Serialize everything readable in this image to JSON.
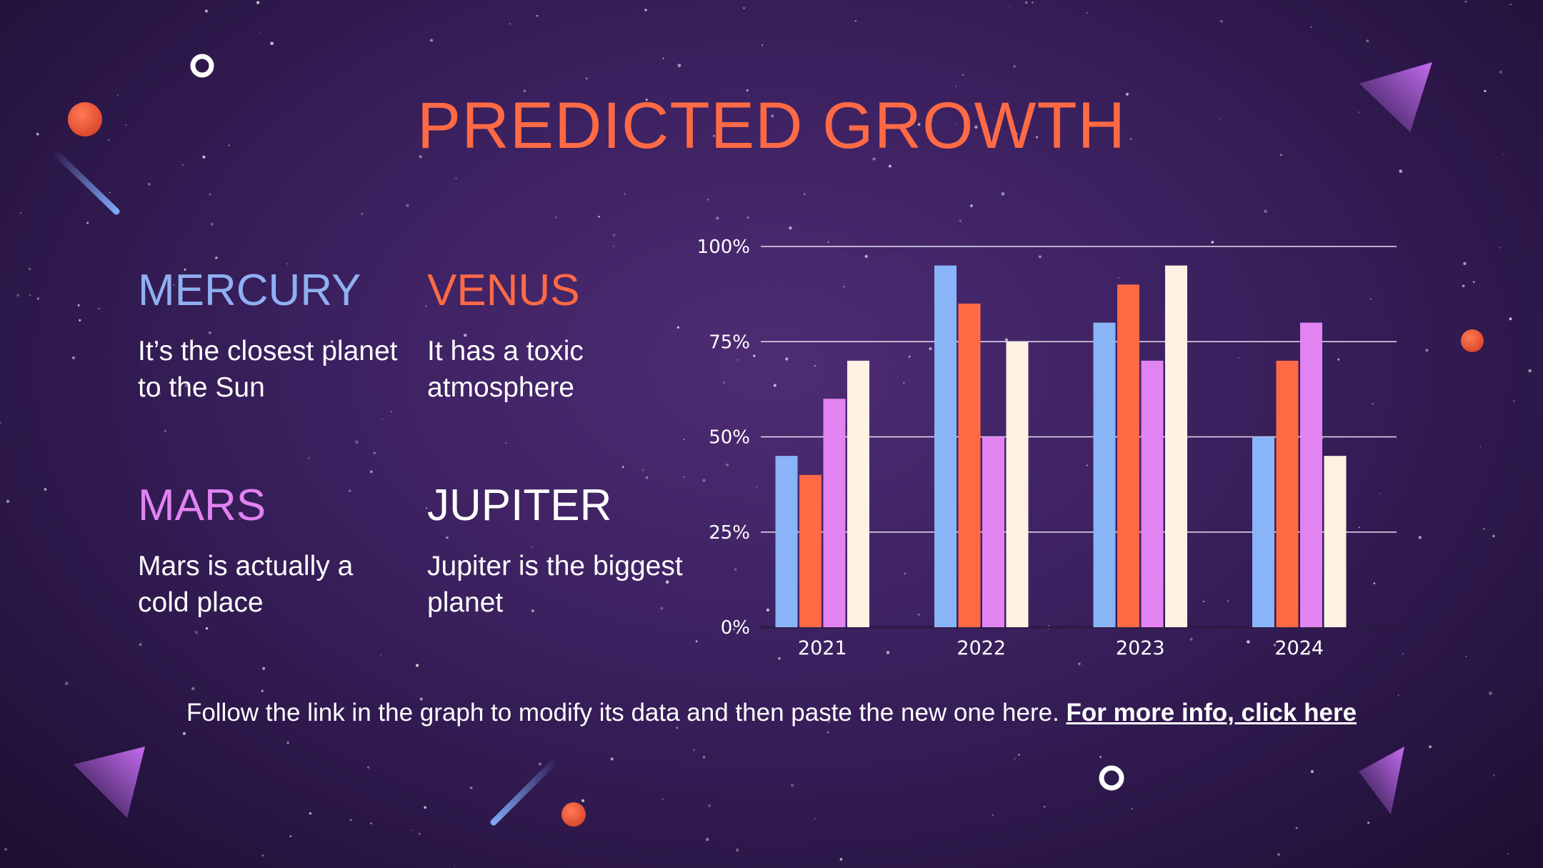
{
  "slide": {
    "title": "PREDICTED GROWTH"
  },
  "planets": [
    {
      "name": "MERCURY",
      "description": "It’s the closest planet to the Sun",
      "color": "#8fb0f2"
    },
    {
      "name": "VENUS",
      "description": "It has a toxic atmosphere",
      "color": "#ff6a45"
    },
    {
      "name": "MARS",
      "description": "Mars is actually a cold place",
      "color": "#e283f2"
    },
    {
      "name": "JUPITER",
      "description": "Jupiter is the biggest planet",
      "color": "#ffffff"
    }
  ],
  "footer": {
    "text": "Follow the link in the graph to modify its data and then paste the new one here.",
    "link_label": "For more info, click here"
  },
  "colors": {
    "title": "#ff6a45",
    "series_blue": "#8ab4f8",
    "series_orange": "#ff6a45",
    "series_pink": "#e283f2",
    "series_cream": "#fff1e3"
  },
  "chart_data": {
    "type": "bar",
    "categories": [
      "2021",
      "2022",
      "2023",
      "2024"
    ],
    "series": [
      {
        "values": [
          45,
          95,
          80,
          50
        ],
        "color": "#8ab4f8"
      },
      {
        "values": [
          40,
          85,
          90,
          70
        ],
        "color": "#ff6a45"
      },
      {
        "values": [
          60,
          50,
          70,
          80
        ],
        "color": "#e283f2"
      },
      {
        "values": [
          70,
          75,
          95,
          45
        ],
        "color": "#fff1e3"
      }
    ],
    "ylim": [
      0,
      100
    ],
    "yticks": [
      "0%",
      "25%",
      "50%",
      "75%",
      "100%"
    ],
    "grid": true
  }
}
